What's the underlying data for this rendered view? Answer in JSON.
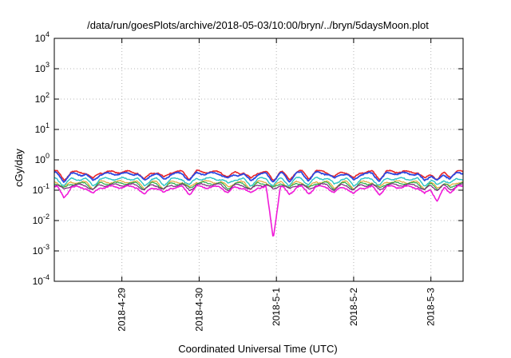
{
  "chart_data": {
    "type": "line",
    "title": "/data/run/goesPlots/archive/2018-05-03/10:00/bryn/../bryn/5daysMoon.plot",
    "xlabel": "Coordinated Universal Time (UTC)",
    "ylabel": "cGy/day",
    "y_scale": "log",
    "ylim": [
      0.0001,
      10000
    ],
    "yticks": [
      {
        "base": "10",
        "exp": "-4",
        "value": 0.0001
      },
      {
        "base": "10",
        "exp": "-3",
        "value": 0.001
      },
      {
        "base": "10",
        "exp": "-2",
        "value": 0.01
      },
      {
        "base": "10",
        "exp": "-1",
        "value": 0.1
      },
      {
        "base": "10",
        "exp": "0",
        "value": 1
      },
      {
        "base": "10",
        "exp": "1",
        "value": 10
      },
      {
        "base": "10",
        "exp": "2",
        "value": 100
      },
      {
        "base": "10",
        "exp": "3",
        "value": 1000
      },
      {
        "base": "10",
        "exp": "4",
        "value": 10000
      }
    ],
    "xlim": [
      "2018-04-28T03:00",
      "2018-05-03T10:00"
    ],
    "xticks": [
      {
        "label": "2018-4-29",
        "value": "2018-04-29T00:00"
      },
      {
        "label": "2018-4-30",
        "value": "2018-04-30T00:00"
      },
      {
        "label": "2018-5-1",
        "value": "2018-05-01T00:00"
      },
      {
        "label": "2018-5-2",
        "value": "2018-05-02T00:00"
      },
      {
        "label": "2018-5-3",
        "value": "2018-05-03T00:00"
      }
    ],
    "grid": true,
    "legend": "none",
    "dips": [
      {
        "time": "2018-04-28T06:00",
        "factor": 0.45
      },
      {
        "time": "2018-04-28T15:00",
        "factor": 0.6
      },
      {
        "time": "2018-04-29T07:00",
        "factor": 0.55
      },
      {
        "time": "2018-04-29T13:00",
        "factor": 0.65
      },
      {
        "time": "2018-04-29T21:00",
        "factor": 0.6
      },
      {
        "time": "2018-04-30T09:00",
        "factor": 0.7
      },
      {
        "time": "2018-04-30T16:00",
        "factor": 0.6
      },
      {
        "time": "2018-04-30T23:00",
        "factor": 0.02
      },
      {
        "time": "2018-05-01T04:00",
        "factor": 0.55
      },
      {
        "time": "2018-05-01T10:00",
        "factor": 0.6
      },
      {
        "time": "2018-05-01T18:00",
        "factor": 0.65
      },
      {
        "time": "2018-05-02T00:00",
        "factor": 0.6
      },
      {
        "time": "2018-05-02T08:00",
        "factor": 0.6
      },
      {
        "time": "2018-05-02T22:00",
        "factor": 0.6
      },
      {
        "time": "2018-05-03T02:00",
        "factor": 0.35
      },
      {
        "time": "2018-05-03T06:00",
        "factor": 0.7
      }
    ],
    "series": [
      {
        "color": "#e8262a",
        "lw": 1.6,
        "x": [
          "2018-04-28T03:00",
          "2018-04-28T12:00",
          "2018-04-29T00:00",
          "2018-04-29T12:00",
          "2018-04-30T00:00",
          "2018-04-30T12:00",
          "2018-05-01T00:00",
          "2018-05-01T12:00",
          "2018-05-02T00:00",
          "2018-05-02T12:00",
          "2018-05-03T00:00",
          "2018-05-03T10:00"
        ],
        "y": [
          0.42,
          0.38,
          0.4,
          0.39,
          0.41,
          0.38,
          0.4,
          0.42,
          0.39,
          0.41,
          0.38,
          0.42
        ]
      },
      {
        "color": "#2c47e0",
        "lw": 1.8,
        "x": [
          "2018-04-28T03:00",
          "2018-04-28T12:00",
          "2018-04-29T00:00",
          "2018-04-29T12:00",
          "2018-04-30T00:00",
          "2018-04-30T12:00",
          "2018-05-01T00:00",
          "2018-05-01T12:00",
          "2018-05-02T00:00",
          "2018-05-02T12:00",
          "2018-05-03T00:00",
          "2018-05-03T10:00"
        ],
        "y": [
          0.36,
          0.33,
          0.35,
          0.34,
          0.36,
          0.33,
          0.35,
          0.37,
          0.34,
          0.36,
          0.33,
          0.37
        ]
      },
      {
        "color": "#2bc3c5",
        "lw": 1.4,
        "x": [
          "2018-04-28T03:00",
          "2018-04-28T12:00",
          "2018-04-29T00:00",
          "2018-04-29T12:00",
          "2018-04-30T00:00",
          "2018-04-30T12:00",
          "2018-05-01T00:00",
          "2018-05-01T12:00",
          "2018-05-02T00:00",
          "2018-05-02T12:00",
          "2018-05-03T00:00",
          "2018-05-03T10:00"
        ],
        "y": [
          0.24,
          0.23,
          0.24,
          0.23,
          0.24,
          0.23,
          0.24,
          0.25,
          0.23,
          0.24,
          0.23,
          0.24
        ]
      },
      {
        "color": "#e5a83a",
        "lw": 1.2,
        "x": [
          "2018-04-28T03:00",
          "2018-04-28T12:00",
          "2018-04-29T00:00",
          "2018-04-29T12:00",
          "2018-04-30T00:00",
          "2018-04-30T12:00",
          "2018-05-01T00:00",
          "2018-05-01T12:00",
          "2018-05-02T00:00",
          "2018-05-02T12:00",
          "2018-05-03T00:00",
          "2018-05-03T10:00"
        ],
        "y": [
          0.19,
          0.18,
          0.19,
          0.18,
          0.19,
          0.18,
          0.19,
          0.19,
          0.18,
          0.19,
          0.18,
          0.19
        ]
      },
      {
        "color": "#2fae4a",
        "lw": 1.2,
        "x": [
          "2018-04-28T03:00",
          "2018-04-28T12:00",
          "2018-04-29T00:00",
          "2018-04-29T12:00",
          "2018-04-30T00:00",
          "2018-04-30T12:00",
          "2018-05-01T00:00",
          "2018-05-01T12:00",
          "2018-05-02T00:00",
          "2018-05-02T12:00",
          "2018-05-03T00:00",
          "2018-05-03T10:00"
        ],
        "y": [
          0.17,
          0.165,
          0.17,
          0.165,
          0.17,
          0.165,
          0.17,
          0.17,
          0.165,
          0.17,
          0.165,
          0.17
        ]
      },
      {
        "color": "#7a2a7a",
        "lw": 1.2,
        "x": [
          "2018-04-28T03:00",
          "2018-04-28T12:00",
          "2018-04-29T00:00",
          "2018-04-29T12:00",
          "2018-04-30T00:00",
          "2018-04-30T12:00",
          "2018-05-01T00:00",
          "2018-05-01T12:00",
          "2018-05-02T00:00",
          "2018-05-02T12:00",
          "2018-05-03T00:00",
          "2018-05-03T10:00"
        ],
        "y": [
          0.15,
          0.145,
          0.15,
          0.145,
          0.15,
          0.145,
          0.15,
          0.15,
          0.145,
          0.15,
          0.145,
          0.15
        ]
      },
      {
        "color": "#f01ad8",
        "lw": 1.6,
        "x": [
          "2018-04-28T03:00",
          "2018-04-28T12:00",
          "2018-04-29T00:00",
          "2018-04-29T12:00",
          "2018-04-30T00:00",
          "2018-04-30T12:00",
          "2018-05-01T00:00",
          "2018-05-01T12:00",
          "2018-05-02T00:00",
          "2018-05-02T12:00",
          "2018-05-03T00:00",
          "2018-05-03T10:00"
        ],
        "y": [
          0.13,
          0.12,
          0.13,
          0.12,
          0.13,
          0.12,
          0.13,
          0.13,
          0.12,
          0.13,
          0.12,
          0.13
        ]
      }
    ]
  }
}
